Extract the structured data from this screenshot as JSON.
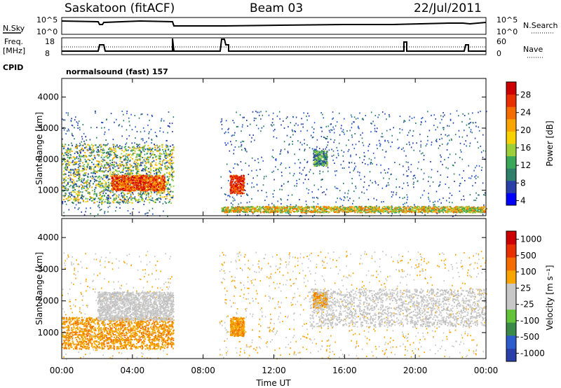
{
  "header": {
    "station": "Saskatoon (fitACF)",
    "beam": "Beam 03",
    "date": "22/Jul/2011"
  },
  "strip_labels": {
    "nsky": "N.Sky",
    "nsky_top": "10^5",
    "nsky_bottom": "10^0",
    "nsearch": "N.Search",
    "nsearch_top": "10^5",
    "nsearch_bottom": "10^0",
    "freq_line1": "Freq.",
    "freq_line2": "[MHz]",
    "freq_top": "18",
    "freq_bottom": "8",
    "nave": "Nave",
    "nave_top": "60",
    "nave_bottom": "0",
    "cpid": "CPID",
    "mode": "normalsound (fast) 157"
  },
  "chart_data": [
    {
      "type": "heatmap",
      "title": "",
      "ylabel": "Slant Range [km]",
      "xlabel": "",
      "xlim": [
        0,
        24
      ],
      "ylim": [
        180,
        4600
      ],
      "yticks": [
        "1000",
        "2000",
        "3000",
        "4000"
      ],
      "colorbar": {
        "label": "Power [dB]",
        "ticks": [
          "28",
          "24",
          "20",
          "16",
          "12",
          "8",
          "4"
        ],
        "colors": [
          "#0000ff",
          "#2a3fa8",
          "#2f7f6a",
          "#3aa858",
          "#9ccf3a",
          "#f7d100",
          "#f9a500",
          "#f56c00",
          "#e83000",
          "#cc0000"
        ]
      },
      "gap_hours": [
        6.3,
        8.9
      ],
      "regions": [
        {
          "t0": 0.0,
          "t1": 6.3,
          "r0": 600,
          "r1": 2500,
          "level": "green-orange"
        },
        {
          "t0": 2.8,
          "t1": 5.8,
          "r0": 1000,
          "r1": 1500,
          "level": "orange-red"
        },
        {
          "t0": 9.5,
          "t1": 10.3,
          "r0": 900,
          "r1": 1500,
          "level": "red"
        },
        {
          "t0": 14.2,
          "t1": 15.0,
          "r0": 1800,
          "r1": 2300,
          "level": "green"
        },
        {
          "t0": 9.0,
          "t1": 24.0,
          "r0": 300,
          "r1": 500,
          "level": "orange-green"
        }
      ]
    },
    {
      "type": "heatmap",
      "title": "",
      "ylabel": "Slant Range [km]",
      "xlabel": "Time UT",
      "xlim": [
        0,
        24
      ],
      "ylim": [
        180,
        4600
      ],
      "xticks": [
        "00:00",
        "04:00",
        "08:00",
        "12:00",
        "16:00",
        "20:00",
        "00:00"
      ],
      "yticks": [
        "1000",
        "2000",
        "3000",
        "4000"
      ],
      "colorbar": {
        "label": "Velocity [m s⁻¹]",
        "ticks": [
          "1000",
          "500",
          "100",
          "25",
          "-25",
          "-100",
          "-500",
          "-1000"
        ],
        "colors": [
          "#2a3fa8",
          "#2e5ccc",
          "#3a8a4a",
          "#63c43a",
          "#c8c8c8",
          "#c8c8c8",
          "#f9a500",
          "#f56c00",
          "#e83000",
          "#cc0000"
        ]
      },
      "gap_hours": [
        6.3,
        8.9
      ],
      "regions": [
        {
          "t0": 0.0,
          "t1": 6.3,
          "r0": 500,
          "r1": 1500,
          "level": "orange"
        },
        {
          "t0": 2.0,
          "t1": 6.3,
          "r0": 1400,
          "r1": 2300,
          "level": "grey"
        },
        {
          "t0": 9.5,
          "t1": 10.3,
          "r0": 900,
          "r1": 1500,
          "level": "orange"
        },
        {
          "t0": 14.2,
          "t1": 15.0,
          "r0": 1800,
          "r1": 2300,
          "level": "orange"
        },
        {
          "t0": 14.0,
          "t1": 24.0,
          "r0": 1200,
          "r1": 2400,
          "level": "grey"
        }
      ]
    }
  ]
}
